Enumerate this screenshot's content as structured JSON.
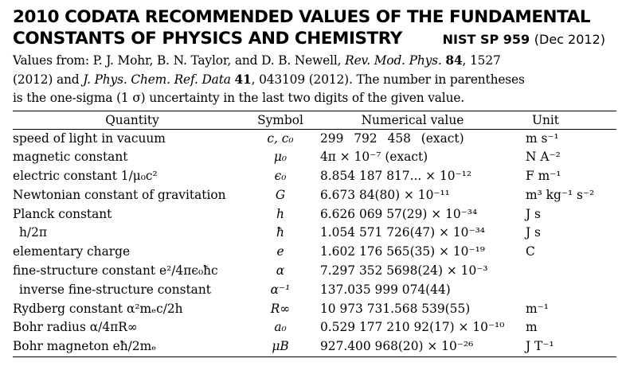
{
  "title": {
    "line1": "2010 CODATA RECOMMENDED VALUES OF THE FUNDAMENTAL",
    "line2": "CONSTANTS OF PHYSICS AND CHEMISTRY",
    "publication": "NIST SP 959",
    "date": "(Dec 2012)"
  },
  "intro": {
    "l1_a": "Values from: P. J. Mohr, B. N. Taylor, and D. B. Newell,",
    "l1_journal": "Rev. Mod. Phys.",
    "l1_vol": "84",
    "l1_page": ", 1527",
    "l2_a": "(2012) and",
    "l2_journal": "J. Phys. Chem. Ref. Data",
    "l2_vol": "41",
    "l2_b": ", 043109 (2012).  The number in parentheses",
    "l3": "is the one-sigma (1 σ) uncertainty in the last two digits of the given value."
  },
  "table": {
    "headers": {
      "quantity": "Quantity",
      "symbol": "Symbol",
      "value": "Numerical value",
      "unit": "Unit"
    },
    "rows": [
      {
        "quantity": "speed of light in vacuum",
        "symbol": "c, c₀",
        "value": "299 792 458   (exact)",
        "unit": "m s⁻¹"
      },
      {
        "quantity": "magnetic constant",
        "symbol": "μ₀",
        "value": "4π × 10⁻⁷   (exact)",
        "unit": "N A⁻²"
      },
      {
        "quantity": "electric constant 1/μ₀c²",
        "symbol": "ϵ₀",
        "value": "8.854 187 817... × 10⁻¹²",
        "unit": "F m⁻¹"
      },
      {
        "quantity": "Newtonian constant of gravitation",
        "symbol": "G",
        "value": "6.673 84(80) × 10⁻¹¹",
        "unit": "m³ kg⁻¹ s⁻²"
      },
      {
        "quantity": "Planck constant",
        "symbol": "h",
        "value": "6.626 069 57(29) × 10⁻³⁴",
        "unit": "J s"
      },
      {
        "quantity": "h/2π",
        "symbol": "ħ",
        "value": "1.054 571 726(47) × 10⁻³⁴",
        "unit": "J s"
      },
      {
        "quantity": "elementary charge",
        "symbol": "e",
        "value": "1.602 176 565(35) × 10⁻¹⁹",
        "unit": "C"
      },
      {
        "quantity": "fine-structure constant e²/4πϵ₀ħc",
        "symbol": "α",
        "value": "7.297 352 5698(24) × 10⁻³",
        "unit": ""
      },
      {
        "quantity": "inverse fine-structure constant",
        "symbol": "α⁻¹",
        "value": "137.035 999 074(44)",
        "unit": ""
      },
      {
        "quantity": "Rydberg constant α²mₑc/2h",
        "symbol": "R∞",
        "value": "10 973 731.568 539(55)",
        "unit": "m⁻¹"
      },
      {
        "quantity": "Bohr radius α/4πR∞",
        "symbol": "a₀",
        "value": "0.529 177 210 92(17) × 10⁻¹⁰",
        "unit": "m"
      },
      {
        "quantity": "Bohr magneton eħ/2mₑ",
        "symbol": "μB",
        "value": "927.400 968(20) × 10⁻²⁶",
        "unit": "J T⁻¹"
      }
    ]
  }
}
